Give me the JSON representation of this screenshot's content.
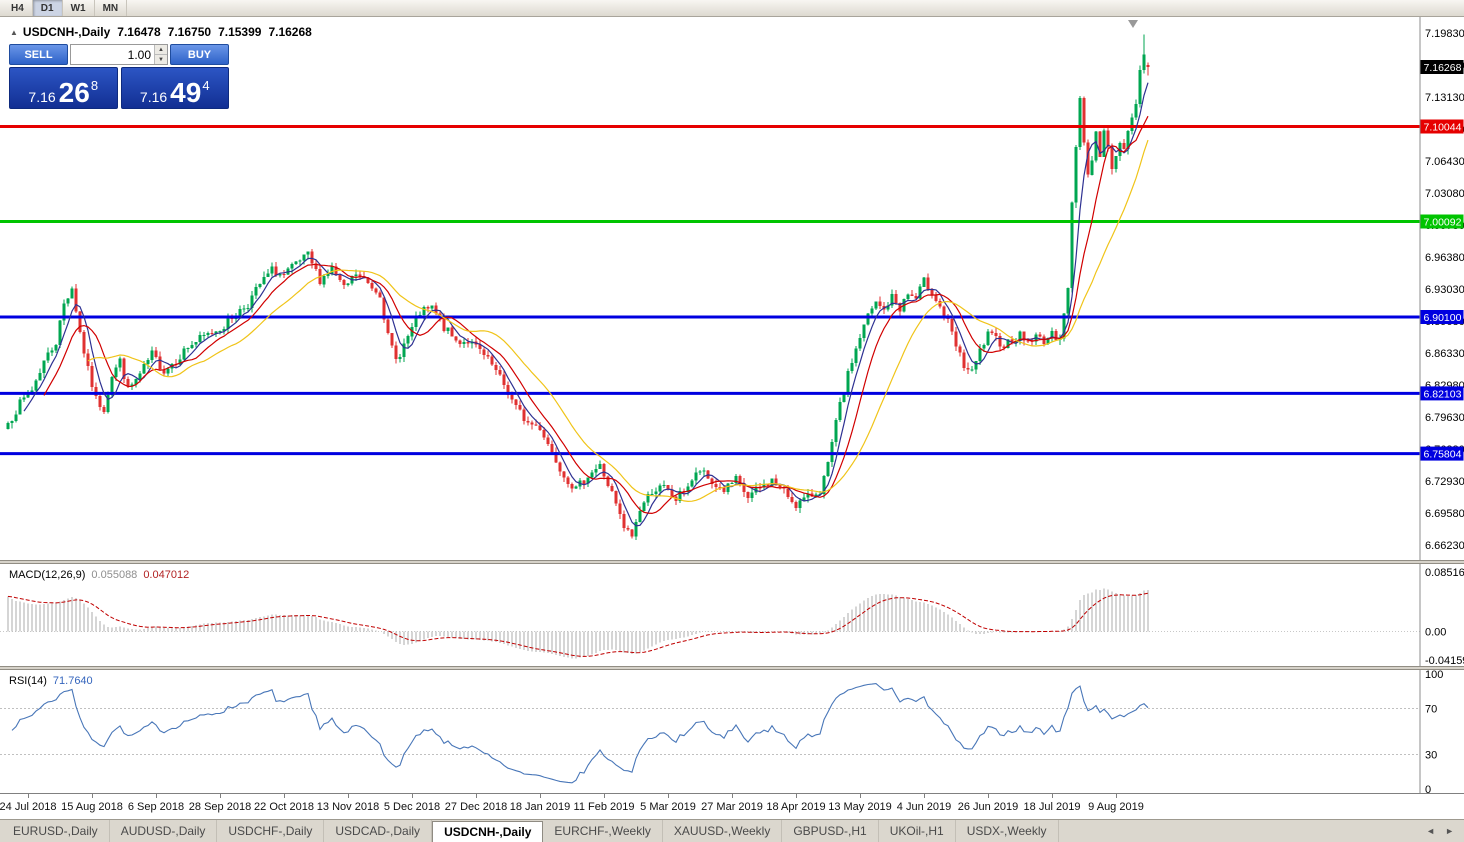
{
  "toolbar": {
    "timeframes": [
      {
        "label": "H4",
        "active": false
      },
      {
        "label": "D1",
        "active": true
      },
      {
        "label": "W1",
        "active": false
      },
      {
        "label": "MN",
        "active": false
      }
    ]
  },
  "chart": {
    "header": {
      "collapse_icon": "▲",
      "symbol": "USDCNH-,Daily",
      "open": "7.16478",
      "high": "7.16750",
      "low": "7.15399",
      "close": "7.16268"
    },
    "one_click": {
      "sell_label": "SELL",
      "buy_label": "BUY",
      "volume": "1.00",
      "volume_up_icon": "▲",
      "volume_down_icon": "▼",
      "sell_price": {
        "base": "7.16",
        "pips": "26",
        "pipette": "8"
      },
      "buy_price": {
        "base": "7.16",
        "pips": "49",
        "pipette": "4"
      }
    }
  },
  "chart_data": {
    "type": "candlestick",
    "symbol": "USDCNH",
    "period": "Daily",
    "current_ohlc": {
      "open": 7.16478,
      "high": 7.1675,
      "low": 7.15399,
      "close": 7.16268
    },
    "candle_count": 286,
    "y_axis": {
      "price_top": 7.215,
      "price_bottom": 6.6467,
      "tick_labels": [
        "7.19830",
        "7.16480",
        "7.13130",
        "7.09780",
        "7.06430",
        "7.03080",
        "6.99730",
        "6.96380",
        "6.93030",
        "6.89680",
        "6.86330",
        "6.82980",
        "6.79630",
        "6.76280",
        "6.72930",
        "6.69580",
        "6.66230"
      ]
    },
    "h_lines": [
      {
        "price": 7.10044,
        "label": "7.10044",
        "color": "#E60000",
        "width": 3
      },
      {
        "price": 7.00092,
        "label": "7.00092",
        "color": "#00C400",
        "width": 3
      },
      {
        "price": 6.901,
        "label": "6.90100",
        "color": "#0000E0",
        "width": 3
      },
      {
        "price": 6.82103,
        "label": "6.82103",
        "color": "#0000E0",
        "width": 3
      },
      {
        "price": 6.75804,
        "label": "6.75804",
        "color": "#0000E0",
        "width": 3
      }
    ],
    "current_price_marker": {
      "price": 7.16268,
      "label": "7.16268",
      "bg": "#000000",
      "fg": "#FFFFFF"
    },
    "shift_marker": {
      "color": "#999999"
    },
    "candle_colors": {
      "up": "#00A651",
      "down": "#E03131"
    },
    "moving_averages": [
      {
        "period": 5,
        "color": "#2E3192"
      },
      {
        "period": 10,
        "color": "#D10000"
      },
      {
        "period": 21,
        "color": "#F0C419"
      }
    ],
    "price_waypoints": [
      [
        0,
        6.79
      ],
      [
        3,
        6.81
      ],
      [
        6,
        6.825
      ],
      [
        9,
        6.855
      ],
      [
        12,
        6.875
      ],
      [
        14,
        6.915
      ],
      [
        16,
        6.932
      ],
      [
        18,
        6.885
      ],
      [
        20,
        6.845
      ],
      [
        22,
        6.815
      ],
      [
        24,
        6.805
      ],
      [
        26,
        6.84
      ],
      [
        28,
        6.855
      ],
      [
        30,
        6.825
      ],
      [
        33,
        6.84
      ],
      [
        36,
        6.862
      ],
      [
        39,
        6.845
      ],
      [
        42,
        6.856
      ],
      [
        45,
        6.87
      ],
      [
        48,
        6.878
      ],
      [
        51,
        6.885
      ],
      [
        54,
        6.892
      ],
      [
        57,
        6.905
      ],
      [
        60,
        6.915
      ],
      [
        63,
        6.935
      ],
      [
        66,
        6.95
      ],
      [
        69,
        6.944
      ],
      [
        72,
        6.956
      ],
      [
        75,
        6.965
      ],
      [
        78,
        6.94
      ],
      [
        81,
        6.952
      ],
      [
        84,
        6.93
      ],
      [
        87,
        6.946
      ],
      [
        90,
        6.936
      ],
      [
        93,
        6.926
      ],
      [
        95,
        6.88
      ],
      [
        97,
        6.856
      ],
      [
        100,
        6.88
      ],
      [
        103,
        6.905
      ],
      [
        106,
        6.91
      ],
      [
        109,
        6.89
      ],
      [
        112,
        6.876
      ],
      [
        115,
        6.876
      ],
      [
        118,
        6.865
      ],
      [
        121,
        6.85
      ],
      [
        124,
        6.83
      ],
      [
        127,
        6.806
      ],
      [
        130,
        6.79
      ],
      [
        133,
        6.786
      ],
      [
        136,
        6.76
      ],
      [
        139,
        6.736
      ],
      [
        142,
        6.72
      ],
      [
        145,
        6.736
      ],
      [
        148,
        6.745
      ],
      [
        151,
        6.716
      ],
      [
        154,
        6.68
      ],
      [
        156,
        6.672
      ],
      [
        158,
        6.7
      ],
      [
        161,
        6.72
      ],
      [
        164,
        6.722
      ],
      [
        167,
        6.71
      ],
      [
        170,
        6.725
      ],
      [
        173,
        6.74
      ],
      [
        176,
        6.727
      ],
      [
        179,
        6.72
      ],
      [
        182,
        6.73
      ],
      [
        185,
        6.712
      ],
      [
        188,
        6.722
      ],
      [
        191,
        6.73
      ],
      [
        194,
        6.718
      ],
      [
        197,
        6.705
      ],
      [
        200,
        6.712
      ],
      [
        203,
        6.72
      ],
      [
        205,
        6.745
      ],
      [
        207,
        6.79
      ],
      [
        209,
        6.825
      ],
      [
        211,
        6.855
      ],
      [
        213,
        6.88
      ],
      [
        215,
        6.902
      ],
      [
        217,
        6.915
      ],
      [
        219,
        6.908
      ],
      [
        221,
        6.922
      ],
      [
        223,
        6.91
      ],
      [
        225,
        6.925
      ],
      [
        227,
        6.92
      ],
      [
        229,
        6.938
      ],
      [
        231,
        6.928
      ],
      [
        233,
        6.912
      ],
      [
        235,
        6.895
      ],
      [
        237,
        6.87
      ],
      [
        239,
        6.85
      ],
      [
        241,
        6.842
      ],
      [
        243,
        6.865
      ],
      [
        245,
        6.882
      ],
      [
        247,
        6.878
      ],
      [
        249,
        6.872
      ],
      [
        251,
        6.878
      ],
      [
        253,
        6.882
      ],
      [
        255,
        6.875
      ],
      [
        257,
        6.88
      ],
      [
        259,
        6.877
      ],
      [
        261,
        6.882
      ],
      [
        263,
        6.88
      ],
      [
        265,
        6.93
      ],
      [
        266,
        7.02
      ],
      [
        267,
        7.08
      ],
      [
        268,
        7.13
      ],
      [
        269,
        7.085
      ],
      [
        270,
        7.05
      ],
      [
        271,
        7.065
      ],
      [
        272,
        7.095
      ],
      [
        273,
        7.07
      ],
      [
        274,
        7.095
      ],
      [
        275,
        7.08
      ],
      [
        276,
        7.055
      ],
      [
        277,
        7.068
      ],
      [
        278,
        7.085
      ],
      [
        279,
        7.078
      ],
      [
        280,
        7.095
      ],
      [
        281,
        7.108
      ],
      [
        282,
        7.125
      ],
      [
        283,
        7.158
      ],
      [
        284,
        7.175
      ],
      [
        285,
        7.16268
      ]
    ],
    "spike_high": 7.1966,
    "x_labels": [
      {
        "index": 5,
        "text": "24 Jul 2018"
      },
      {
        "index": 21,
        "text": "15 Aug 2018"
      },
      {
        "index": 37,
        "text": "6 Sep 2018"
      },
      {
        "index": 53,
        "text": "28 Sep 2018"
      },
      {
        "index": 69,
        "text": "22 Oct 2018"
      },
      {
        "index": 85,
        "text": "13 Nov 2018"
      },
      {
        "index": 101,
        "text": "5 Dec 2018"
      },
      {
        "index": 117,
        "text": "27 Dec 2018"
      },
      {
        "index": 133,
        "text": "18 Jan 2019"
      },
      {
        "index": 149,
        "text": "11 Feb 2019"
      },
      {
        "index": 165,
        "text": "5 Mar 2019"
      },
      {
        "index": 181,
        "text": "27 Mar 2019"
      },
      {
        "index": 197,
        "text": "18 Apr 2019"
      },
      {
        "index": 213,
        "text": "13 May 2019"
      },
      {
        "index": 229,
        "text": "4 Jun 2019"
      },
      {
        "index": 245,
        "text": "26 Jun 2019"
      },
      {
        "index": 261,
        "text": "18 Jul 2019"
      },
      {
        "index": 277,
        "text": "9 Aug 2019"
      }
    ]
  },
  "indicators": {
    "macd": {
      "label": "MACD(12,26,9)",
      "main_value": "0.055088",
      "signal_value": "0.047012",
      "fast": 12,
      "slow": 26,
      "signal": 9,
      "axis_max": 0.085164,
      "axis_min": -0.041597,
      "axis_labels": {
        "max": "0.085164",
        "zero": "0.00",
        "min": "-0.041597"
      },
      "histogram_color": "#ABABAB",
      "signal_color": "#C00000"
    },
    "rsi": {
      "label": "RSI(14)",
      "value": "71.7640",
      "period": 14,
      "axis_labels": [
        "100",
        "70",
        "30",
        "0"
      ],
      "levels": [
        70,
        30
      ],
      "line_color": "#4876B8",
      "level_color": "#C0C0C0"
    }
  },
  "tab_bar": {
    "tabs": [
      {
        "label": "EURUSD-,Daily",
        "active": false
      },
      {
        "label": "AUDUSD-,Daily",
        "active": false
      },
      {
        "label": "USDCHF-,Daily",
        "active": false
      },
      {
        "label": "USDCAD-,Daily",
        "active": false
      },
      {
        "label": "USDCNH-,Daily",
        "active": true
      },
      {
        "label": "EURCHF-,Weekly",
        "active": false
      },
      {
        "label": "XAUUSD-,Weekly",
        "active": false
      },
      {
        "label": "GBPUSD-,H1",
        "active": false
      },
      {
        "label": "UKOil-,H1",
        "active": false
      },
      {
        "label": "USDX-,Weekly",
        "active": false
      }
    ],
    "nav_left": "◄",
    "nav_right": "►"
  }
}
